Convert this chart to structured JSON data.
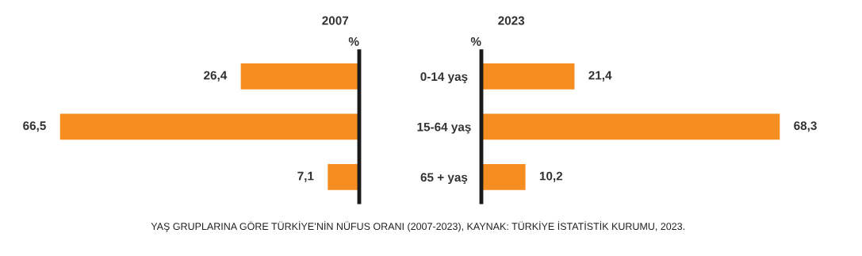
{
  "chart_data": [
    {
      "type": "bar",
      "orientation": "horizontal",
      "title": "2007",
      "categories": [
        "0-14 yaş",
        "15-64 yaş",
        "65 + yaş"
      ],
      "values": [
        26.4,
        66.5,
        7.1
      ],
      "value_labels": [
        "26,4",
        "66,5",
        "7,1"
      ],
      "color": "#f58d21",
      "tick_labels": "y",
      "annotations": [
        "%"
      ]
    },
    {
      "type": "bar",
      "orientation": "horizontal",
      "title": "2023",
      "categories": [
        null,
        null,
        null
      ],
      "values": [
        21.4,
        68.3,
        10.2
      ],
      "value_labels": [
        "21,4",
        "68,3",
        "10,2"
      ],
      "color": "#f58d21",
      "tick_labels": false,
      "annotations": [
        "%",
        "YAŞ GRUPLARINA GÖRE TÜRKİYE’NİN NÜFUS ORANI (2007-2023), KAYNAK: TÜRKİYE İSTATİSTİK KURUMU, 2023."
      ]
    }
  ]
}
